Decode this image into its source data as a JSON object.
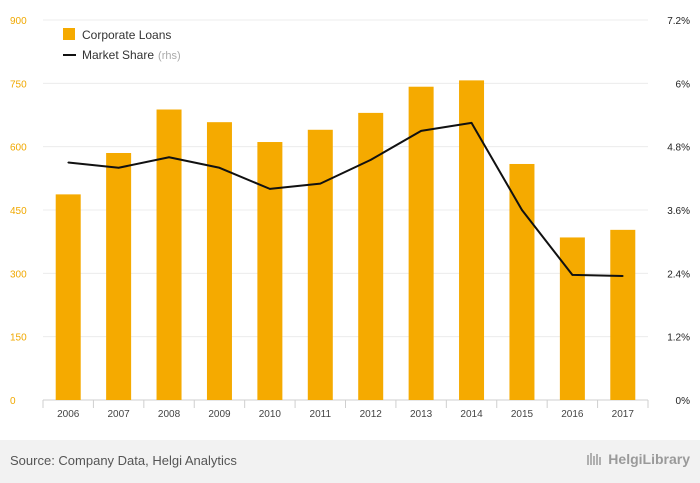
{
  "chart_data": {
    "type": "bar",
    "categories": [
      "2006",
      "2007",
      "2008",
      "2009",
      "2010",
      "2011",
      "2012",
      "2013",
      "2014",
      "2015",
      "2016",
      "2017"
    ],
    "series": [
      {
        "name": "Corporate Loans",
        "type": "bar",
        "axis": "left",
        "values": [
          487,
          585,
          688,
          658,
          611,
          640,
          680,
          742,
          757,
          559,
          385,
          403
        ]
      },
      {
        "name": "Market Share",
        "name_suffix": "(rhs)",
        "type": "line",
        "axis": "right",
        "values": [
          4.5,
          4.4,
          4.6,
          4.4,
          4.0,
          4.1,
          4.55,
          5.1,
          5.25,
          3.6,
          2.37,
          2.35
        ]
      }
    ],
    "ylim_left": [
      0,
      900
    ],
    "ylim_right": [
      0,
      7.2
    ],
    "left_ticks": [
      "0",
      "150",
      "300",
      "450",
      "600",
      "750",
      "900"
    ],
    "right_ticks": [
      "0%",
      "1.2%",
      "2.4%",
      "3.6%",
      "4.8%",
      "6%",
      "7.2%"
    ],
    "grid": true,
    "legend_position": "top-left",
    "colors": {
      "bar": "#f5aa00",
      "line": "#111111",
      "left_axis_text": "#f0a800"
    }
  },
  "footer": {
    "source": "Source: Company Data, Helgi Analytics",
    "brand": "HelgiLibrary"
  }
}
